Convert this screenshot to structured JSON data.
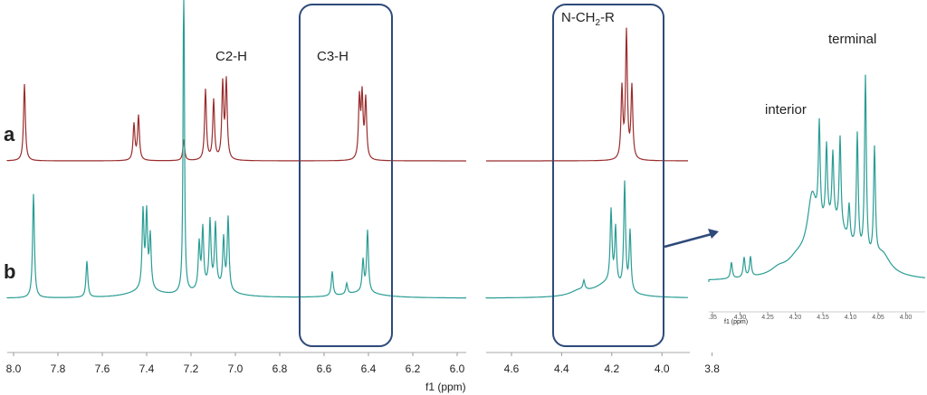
{
  "labels": {
    "a": "a",
    "b": "b",
    "c2": "C2-H",
    "c3": "C3-H",
    "nch": "N-CH",
    "nch_sub": "2",
    "nch_r": "-R",
    "interior": "interior",
    "terminal": "terminal"
  },
  "axis": {
    "title": "f1 (ppm)",
    "left_ticks": [
      "8.0",
      "7.8",
      "7.6",
      "7.4",
      "7.2",
      "7.0",
      "6.8",
      "6.6",
      "6.4",
      "6.2",
      "6.0"
    ],
    "right_ticks": [
      "4.6",
      "4.4",
      "4.2",
      "4.0",
      "3.8"
    ]
  },
  "inset_axis": {
    "title": "f1 (ppm)",
    "ticks": [
      ".35",
      "4.30",
      "4.25",
      "4.20",
      "4.15",
      "4.10",
      "4.05",
      "4.00"
    ]
  }
}
